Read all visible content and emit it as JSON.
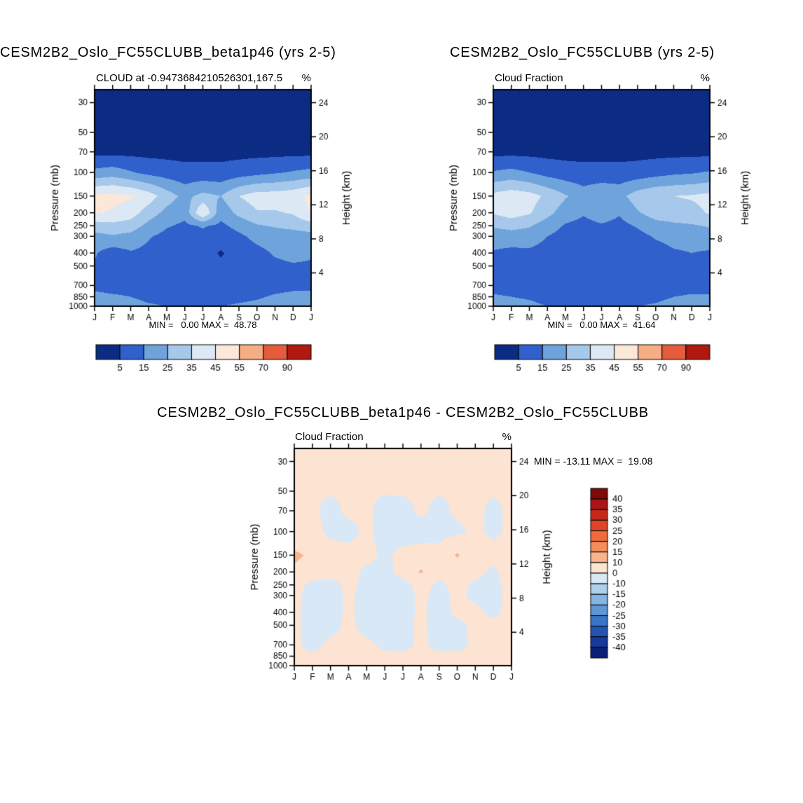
{
  "page": {
    "background": "#ffffff"
  },
  "chart_data": [
    {
      "type": "heatmap",
      "panel": "top-left",
      "title": "CESM2B2_Oslo_FC55CLUBB_beta1p46 (yrs 2-5)",
      "subtitle": "CLOUD at -0.9473684210526301,167.5",
      "unit": "%",
      "ylabel_left": "Pressure (mb)",
      "ylabel_right": "Height (km)",
      "x_tick_labels": [
        "J",
        "F",
        "M",
        "A",
        "M",
        "J",
        "J",
        "A",
        "S",
        "O",
        "N",
        "D",
        "J"
      ],
      "pressure_levels": [
        30,
        50,
        70,
        100,
        150,
        200,
        250,
        300,
        400,
        500,
        700,
        850,
        1000
      ],
      "height_ticks_km": [
        24,
        20,
        16,
        12,
        8,
        4
      ],
      "min": 0.0,
      "max": 48.78,
      "minmax_text": "MIN =   0.00 MAX =  48.78",
      "levels": [
        5,
        15,
        25,
        35,
        45,
        55,
        70,
        90
      ],
      "colors": [
        "#0c2c84",
        "#3060cc",
        "#6fa3dc",
        "#a6c8ea",
        "#dce9f5",
        "#fbe8d9",
        "#f5ae84",
        "#e45c3c",
        "#b01810"
      ],
      "values": [
        [
          1,
          1,
          1,
          1,
          1,
          1,
          1,
          1,
          1,
          1,
          1,
          1,
          1
        ],
        [
          1,
          1,
          1,
          1,
          1,
          1,
          1,
          1,
          1,
          1,
          1,
          1,
          1
        ],
        [
          2,
          2,
          2,
          2,
          2,
          2,
          2,
          2,
          2,
          2,
          2,
          2,
          2
        ],
        [
          18,
          20,
          16,
          12,
          10,
          8,
          8,
          8,
          10,
          12,
          14,
          16,
          18
        ],
        [
          47,
          48,
          46,
          40,
          30,
          22,
          28,
          25,
          35,
          40,
          40,
          42,
          47
        ],
        [
          46,
          44,
          40,
          30,
          22,
          18,
          46,
          18,
          28,
          34,
          34,
          36,
          46
        ],
        [
          30,
          32,
          30,
          22,
          16,
          13,
          16,
          13,
          18,
          24,
          26,
          28,
          30
        ],
        [
          22,
          24,
          22,
          16,
          12,
          10,
          12,
          10,
          13,
          18,
          20,
          20,
          22
        ],
        [
          16,
          10,
          14,
          12,
          10,
          8,
          9,
          4,
          9,
          12,
          16,
          18,
          16
        ],
        [
          14,
          12,
          13,
          11,
          9,
          8,
          8,
          7,
          8,
          11,
          13,
          14,
          14
        ],
        [
          13,
          12,
          12,
          10,
          9,
          9,
          8,
          8,
          9,
          11,
          12,
          13,
          13
        ],
        [
          17,
          16,
          15,
          13,
          12,
          12,
          11,
          12,
          13,
          14,
          16,
          17,
          17
        ],
        [
          20,
          19,
          18,
          16,
          15,
          14,
          14,
          15,
          16,
          17,
          19,
          20,
          20
        ]
      ]
    },
    {
      "type": "heatmap",
      "panel": "top-right",
      "title": "CESM2B2_Oslo_FC55CLUBB (yrs 2-5)",
      "subtitle": "Cloud Fraction",
      "unit": "%",
      "ylabel_left": "Pressure (mb)",
      "ylabel_right": "Height (km)",
      "x_tick_labels": [
        "J",
        "F",
        "M",
        "A",
        "M",
        "J",
        "J",
        "A",
        "S",
        "O",
        "N",
        "D",
        "J"
      ],
      "pressure_levels": [
        30,
        50,
        70,
        100,
        150,
        200,
        250,
        300,
        400,
        500,
        700,
        850,
        1000
      ],
      "height_ticks_km": [
        24,
        20,
        16,
        12,
        8,
        4
      ],
      "min": 0.0,
      "max": 41.64,
      "minmax_text": "MIN =   0.00 MAX =  41.64",
      "levels": [
        5,
        15,
        25,
        35,
        45,
        55,
        70,
        90
      ],
      "colors": [
        "#0c2c84",
        "#3060cc",
        "#6fa3dc",
        "#a6c8ea",
        "#dce9f5",
        "#fbe8d9",
        "#f5ae84",
        "#e45c3c",
        "#b01810"
      ],
      "values": [
        [
          1,
          1,
          1,
          1,
          1,
          1,
          1,
          1,
          1,
          1,
          1,
          1,
          1
        ],
        [
          1,
          1,
          1,
          1,
          1,
          1,
          1,
          1,
          1,
          1,
          1,
          1,
          1
        ],
        [
          2,
          2,
          2,
          2,
          2,
          2,
          2,
          2,
          2,
          2,
          2,
          2,
          2
        ],
        [
          16,
          18,
          15,
          11,
          9,
          8,
          8,
          8,
          9,
          11,
          13,
          14,
          16
        ],
        [
          38,
          41,
          39,
          33,
          26,
          20,
          24,
          22,
          30,
          34,
          35,
          36,
          38
        ],
        [
          36,
          40,
          36,
          28,
          20,
          16,
          20,
          16,
          24,
          30,
          31,
          32,
          36
        ],
        [
          26,
          28,
          26,
          20,
          14,
          12,
          14,
          12,
          16,
          21,
          23,
          24,
          26
        ],
        [
          20,
          21,
          20,
          15,
          11,
          9,
          11,
          9,
          12,
          16,
          18,
          18,
          20
        ],
        [
          14,
          12,
          13,
          11,
          9,
          8,
          8,
          6,
          8,
          11,
          14,
          15,
          14
        ],
        [
          13,
          11,
          12,
          10,
          8,
          7,
          7,
          7,
          8,
          10,
          12,
          13,
          13
        ],
        [
          12,
          11,
          11,
          9,
          8,
          8,
          8,
          8,
          9,
          10,
          11,
          12,
          12
        ],
        [
          16,
          15,
          14,
          12,
          11,
          11,
          11,
          11,
          12,
          13,
          15,
          16,
          16
        ],
        [
          19,
          18,
          17,
          15,
          14,
          13,
          13,
          14,
          15,
          16,
          18,
          19,
          19
        ]
      ]
    },
    {
      "type": "heatmap",
      "panel": "bottom-difference",
      "title": "CESM2B2_Oslo_FC55CLUBB_beta1p46 - CESM2B2_Oslo_FC55CLUBB",
      "subtitle": "Cloud Fraction",
      "unit": "%",
      "ylabel_left": "Pressure (mb)",
      "ylabel_right": "Height (km)",
      "x_tick_labels": [
        "J",
        "F",
        "M",
        "A",
        "M",
        "J",
        "J",
        "A",
        "S",
        "O",
        "N",
        "D",
        "J"
      ],
      "pressure_levels": [
        30,
        50,
        70,
        100,
        150,
        200,
        250,
        300,
        400,
        500,
        700,
        850,
        1000
      ],
      "height_ticks_km": [
        24,
        20,
        16,
        12,
        8,
        4
      ],
      "min": -13.11,
      "max": 19.08,
      "minmax_text": "MIN = -13.11 MAX =  19.08",
      "levels": [
        -40,
        -35,
        -30,
        -25,
        -20,
        -15,
        -10,
        0,
        10,
        15,
        20,
        25,
        30,
        35,
        40
      ],
      "colors": [
        "#0a2078",
        "#16399c",
        "#2354b4",
        "#3a74c8",
        "#5e97d6",
        "#85b5e2",
        "#aed0ec",
        "#d8e8f6",
        "#fde3d1",
        "#f9b48c",
        "#f68c5c",
        "#ef6a3c",
        "#e04428",
        "#c62818",
        "#a81616",
        "#7f0a0a"
      ],
      "colorbar_labels": [
        "40",
        "35",
        "30",
        "25",
        "20",
        "15",
        "10",
        "0",
        "-10",
        "-15",
        "-20",
        "-25",
        "-30",
        "-35",
        "-40"
      ],
      "values": [
        [
          1,
          1,
          1,
          1,
          1,
          1,
          1,
          1,
          1,
          1,
          1,
          1,
          1
        ],
        [
          1,
          1,
          1,
          1,
          1,
          1,
          1,
          1,
          1,
          1,
          1,
          1,
          1
        ],
        [
          2,
          2,
          -3,
          2,
          2,
          -4,
          -3,
          2,
          -3,
          2,
          2,
          -2,
          2
        ],
        [
          2,
          3,
          -2,
          -3,
          2,
          -4,
          -5,
          -4,
          -3,
          -2,
          2,
          -2,
          2
        ],
        [
          12,
          8,
          4,
          3,
          3,
          -2,
          3,
          4,
          3,
          11,
          4,
          3,
          6
        ],
        [
          8,
          6,
          4,
          3,
          -2,
          -3,
          3,
          11,
          3,
          5,
          3,
          -2,
          5
        ],
        [
          4,
          -3,
          -4,
          3,
          -3,
          -4,
          -3,
          3,
          -2,
          3,
          -2,
          -3,
          4
        ],
        [
          3,
          -4,
          -5,
          2,
          -4,
          -4,
          -4,
          2,
          -3,
          2,
          -2,
          -3,
          3
        ],
        [
          3,
          -6,
          -4,
          2,
          -4,
          -5,
          -4,
          2,
          -4,
          2,
          2,
          -2,
          3
        ],
        [
          2,
          -4,
          -3,
          2,
          -3,
          -4,
          -3,
          2,
          -4,
          -2,
          2,
          2,
          2
        ],
        [
          2,
          -3,
          2,
          2,
          2,
          -2,
          -3,
          2,
          -3,
          -3,
          2,
          2,
          2
        ],
        [
          2,
          2,
          2,
          2,
          2,
          2,
          2,
          2,
          2,
          2,
          2,
          2,
          2
        ],
        [
          2,
          2,
          2,
          2,
          2,
          2,
          2,
          2,
          2,
          2,
          2,
          2,
          2
        ]
      ]
    }
  ]
}
